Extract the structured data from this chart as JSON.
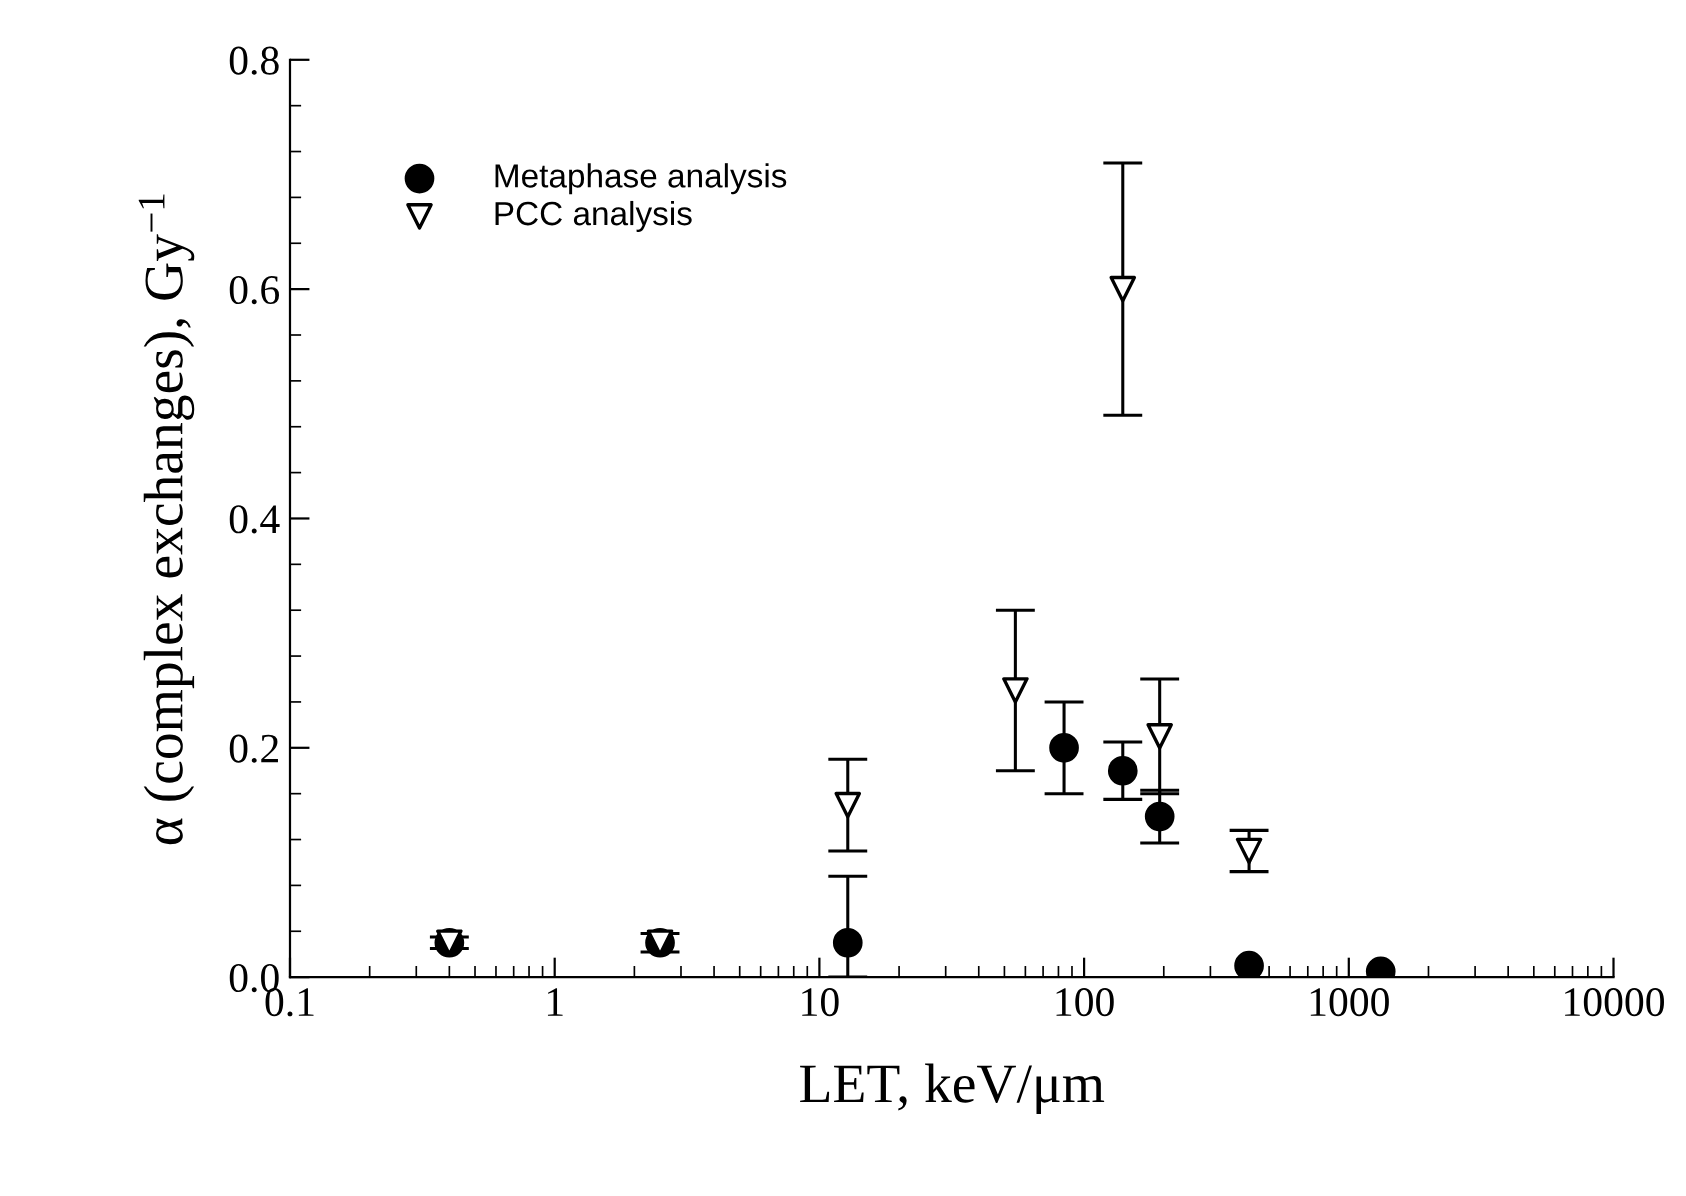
{
  "chart_data": {
    "type": "scatter",
    "xlabel": "LET, keV/μm",
    "ylabel": "α (complex exchanges), Gy$^{−1}$",
    "log": "x",
    "xlim": [
      0.1,
      10000
    ],
    "xticks": [
      0.1,
      1,
      10,
      100,
      1000,
      10000
    ],
    "ylim": [
      0,
      0.8
    ],
    "yticks": [
      {
        "value": 0,
        "label": "0.0"
      },
      0.2,
      0.4,
      0.6,
      0.8
    ],
    "grid": false,
    "legend": "top left",
    "series": [
      {
        "name": "Metaphase analysis",
        "color": "#000000",
        "marker": "circle",
        "x": [
          0.4,
          2.5,
          12.8,
          84,
          140,
          193,
          420,
          1320
        ],
        "values": [
          0.03,
          0.03,
          0.03,
          0.2,
          0.18,
          0.14,
          0.01,
          0.005
        ],
        "errors": [
          null,
          null,
          [
            0,
            0.088
          ],
          0.04,
          0.025,
          0.023,
          null,
          null
        ]
      },
      {
        "name": "PCC analysis",
        "color": "#000000",
        "marker": "triangle",
        "x": [
          0.4,
          2.5,
          12.8,
          55,
          140,
          193,
          420
        ],
        "values": [
          0.03,
          0.03,
          0.15,
          0.25,
          0.6,
          0.21,
          0.11
        ],
        "errors": [
          0.005,
          0.008,
          0.04,
          0.07,
          0.11,
          0.05,
          0.018
        ]
      }
    ]
  }
}
